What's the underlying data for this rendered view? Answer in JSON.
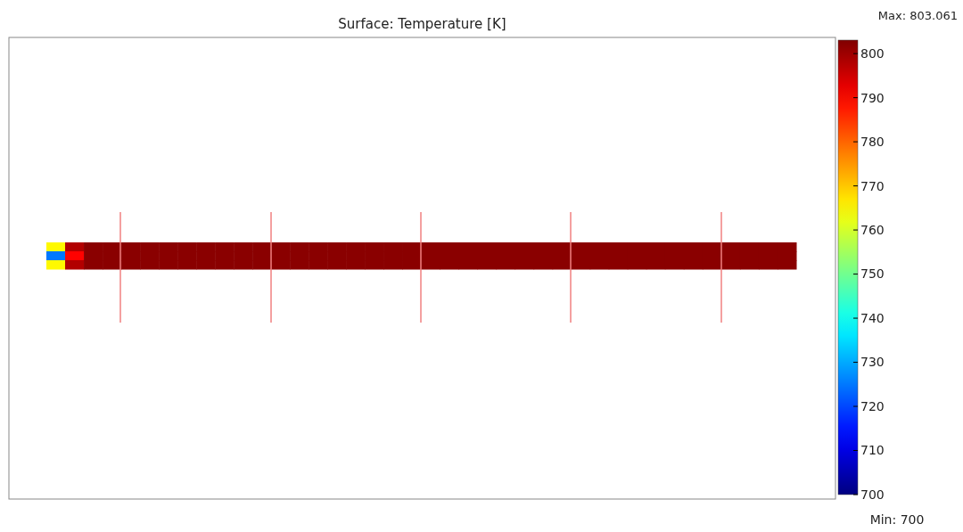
{
  "chart_data": {
    "type": "heatmap",
    "title": "Surface: Temperature [K]",
    "categories": [
      null,
      null,
      null,
      null,
      null,
      null,
      null,
      null,
      null,
      null,
      null,
      null,
      null,
      null,
      null,
      null,
      null,
      null,
      null,
      null,
      null,
      null,
      null,
      null,
      null,
      null,
      null,
      null,
      null,
      null,
      null,
      null,
      null,
      null,
      null,
      null,
      null,
      null,
      null,
      null
    ],
    "y_categories": [
      null,
      null,
      null
    ],
    "cells": [
      [
        765,
        798,
        802,
        802,
        802,
        802,
        802,
        802,
        802,
        802,
        802,
        802,
        802,
        802,
        802,
        802,
        802,
        802,
        802,
        802,
        802,
        802,
        802,
        802,
        802,
        802,
        802,
        802,
        802,
        802,
        802,
        802,
        802,
        802,
        802,
        802,
        802,
        802,
        802,
        802
      ],
      [
        725,
        790,
        802,
        802,
        802,
        802,
        802,
        802,
        802,
        802,
        802,
        802,
        802,
        802,
        802,
        802,
        802,
        802,
        802,
        802,
        802,
        802,
        802,
        802,
        802,
        802,
        802,
        802,
        802,
        802,
        802,
        802,
        802,
        802,
        802,
        802,
        802,
        802,
        802,
        802
      ],
      [
        765,
        798,
        802,
        802,
        802,
        802,
        802,
        802,
        802,
        802,
        802,
        802,
        802,
        802,
        802,
        802,
        802,
        802,
        802,
        802,
        802,
        802,
        802,
        802,
        802,
        802,
        802,
        802,
        802,
        802,
        802,
        802,
        802,
        802,
        802,
        802,
        802,
        802,
        802,
        802
      ]
    ],
    "clim": [
      700,
      803.061
    ],
    "cticks": [
      700,
      710,
      720,
      730,
      740,
      750,
      760,
      770,
      780,
      790,
      800
    ],
    "annotations": [
      "Max: 803.061",
      "Min: 700"
    ]
  }
}
